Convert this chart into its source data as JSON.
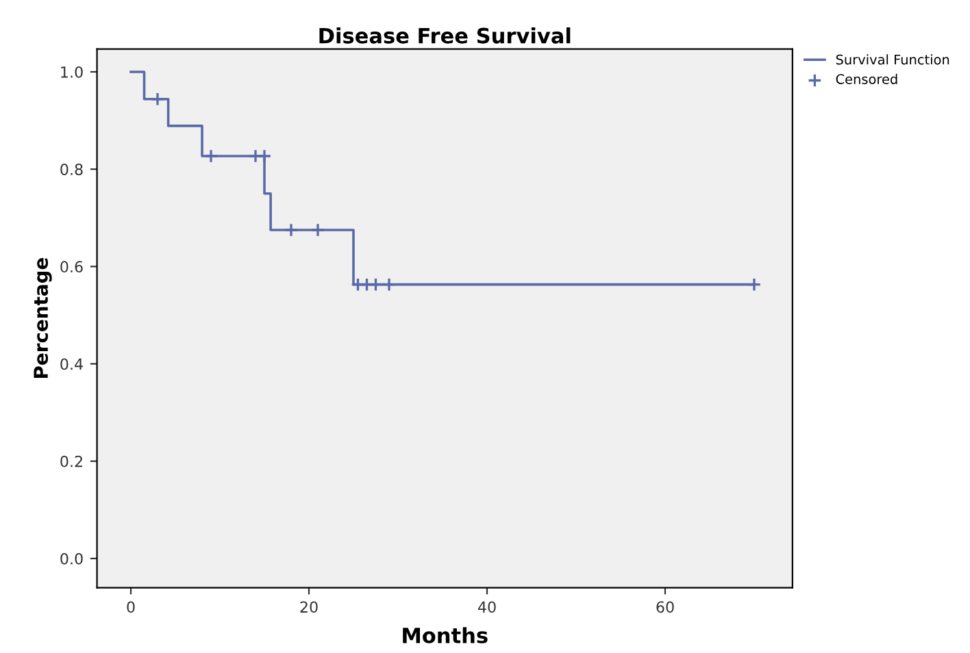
{
  "chart_data": {
    "type": "step",
    "title": "Disease Free Survival",
    "xlabel": "Months",
    "ylabel": "Percentage",
    "xlim": [
      -3.8,
      74.3
    ],
    "ylim": [
      -0.06,
      1.047
    ],
    "xticks": [
      0,
      20,
      40,
      60
    ],
    "yticks": [
      {
        "value": 0,
        "label": "0.0"
      },
      {
        "value": 0.2,
        "label": "0.2"
      },
      {
        "value": 0.4,
        "label": "0.4"
      },
      {
        "value": 0.6,
        "label": "0.6"
      },
      {
        "value": 0.8,
        "label": "0.8"
      },
      {
        "value": 1,
        "label": "1.0"
      }
    ],
    "grid": false,
    "legend": "top right",
    "series": [
      {
        "name": "Survival Function",
        "color": "#5a6aa8",
        "x": [
          0,
          1.5,
          4.2,
          8,
          15,
          15.7,
          25,
          70
        ],
        "values": [
          1,
          0.944,
          0.889,
          0.827,
          0.75,
          0.675,
          0.563,
          0.563
        ]
      },
      {
        "name": "Censored",
        "type": "scatter",
        "marker": "cross",
        "color": "#5a6aa8",
        "x": [
          3,
          9,
          14,
          15,
          18,
          21,
          25.5,
          26.5,
          27.5,
          29,
          70
        ],
        "values": [
          0.944,
          0.827,
          0.827,
          0.827,
          0.675,
          0.675,
          0.563,
          0.563,
          0.563,
          0.563,
          0.563
        ]
      }
    ]
  }
}
